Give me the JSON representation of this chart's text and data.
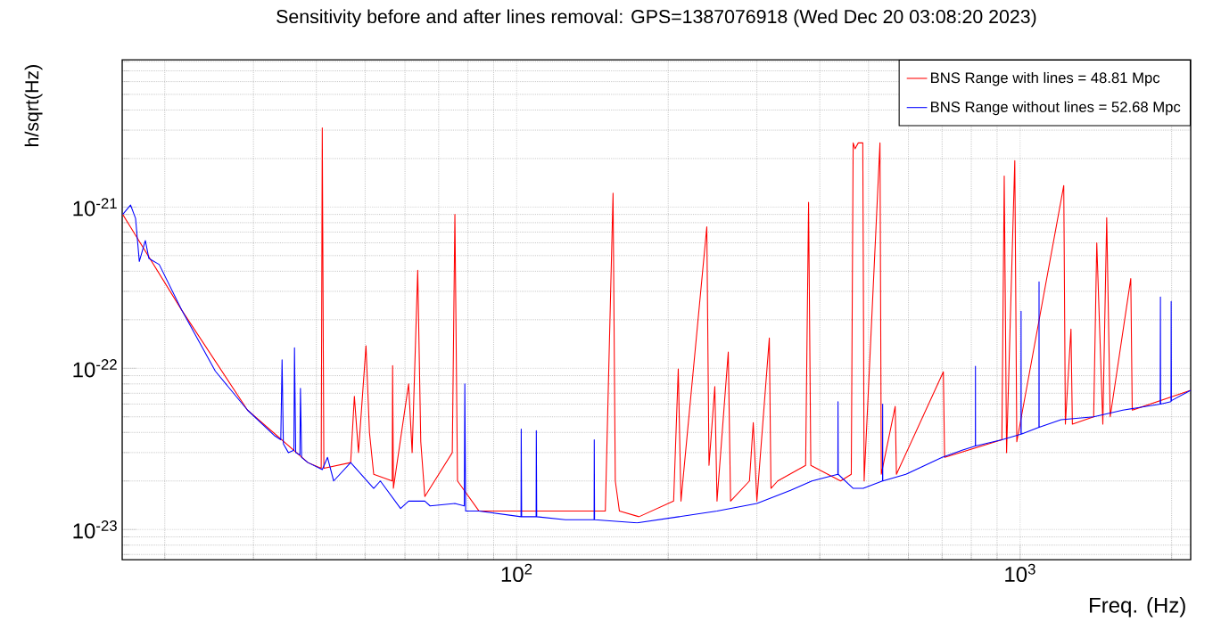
{
  "chart_data": {
    "type": "line",
    "title": "Sensitivity before and after lines removal: GPS=1387076918 (Wed Dec 20 03:08:20 2023)",
    "xlabel": "Freq. (Hz)",
    "ylabel": "h/sqrt(Hz)",
    "log": "xy",
    "grid": true,
    "legend": "top right",
    "xlim": [
      16.46,
      2182
    ],
    "ylim": [
      6.5e-24,
      8.2e-21
    ],
    "xticks": [
      {
        "value": 100,
        "label": "10$^{2}$"
      },
      {
        "value": 1000,
        "label": "10$^{3}$"
      }
    ],
    "yticks": [
      {
        "value": 1e-23,
        "label": "10$^{-23}$"
      },
      {
        "value": 1e-22,
        "label": "10$^{-22}$"
      },
      {
        "value": 1e-21,
        "label": "10$^{-21}$"
      }
    ],
    "series": [
      {
        "name": "BNS Range with lines = 48.81 Mpc",
        "color": "#ff0000",
        "x": [
          16.5,
          21.6,
          29.2,
          38.5,
          40.9,
          41.1,
          41.4,
          46.8,
          47.6,
          48.5,
          50.2,
          51.0,
          52.0,
          56.6,
          56.7,
          56.9,
          61.0,
          62.0,
          63.6,
          64.5,
          65.7,
          74.5,
          75.4,
          76.3,
          84.2,
          150,
          155.4,
          157,
          160,
          175,
          205,
          209.4,
          212,
          238.6,
          241,
          247.5,
          250,
          263.2,
          266,
          290,
          295.1,
          300,
          317.6,
          320,
          330,
          375,
          380.1,
          384,
          440,
          462,
          466,
          470,
          477,
          487,
          490,
          526.8,
          530,
          564.8,
          568,
          704,
          708,
          920,
          930,
          940,
          976,
          985,
          1221,
          1230,
          1262,
          1270,
          1400,
          1420,
          1460,
          1486,
          1510,
          1659,
          1670,
          2182
        ],
        "values": [
          9e-22,
          2.3e-22,
          5.5e-23,
          2.6e-23,
          2.4e-23,
          3.1e-21,
          2.4e-23,
          2.6e-23,
          6.7e-23,
          3e-23,
          1.38e-22,
          4e-23,
          2.2e-23,
          2e-23,
          1.04e-22,
          1.8e-23,
          8e-23,
          3e-23,
          4.06e-22,
          3.5e-23,
          1.6e-23,
          3e-23,
          9e-22,
          2e-23,
          1.3e-23,
          1.3e-23,
          1.22e-21,
          2e-23,
          1.3e-23,
          1.2e-23,
          1.5e-23,
          9.9e-23,
          1.5e-23,
          7.55e-22,
          2.5e-23,
          7.7e-23,
          1.5e-23,
          1.26e-22,
          1.5e-23,
          2e-23,
          4.6e-23,
          1.5e-23,
          1.54e-22,
          1.8e-23,
          2e-23,
          2.5e-23,
          1.07e-21,
          2.5e-23,
          2e-23,
          2.2e-23,
          2.5e-21,
          2.3e-21,
          2.5e-21,
          2.5e-21,
          2e-23,
          2.5e-21,
          2.2e-23,
          5.8e-23,
          2.2e-23,
          9.5e-23,
          2.8e-23,
          3.6e-23,
          1.56e-21,
          3e-23,
          1.94e-21,
          3.5e-23,
          1.36e-21,
          4.5e-23,
          1.75e-22,
          4.5e-23,
          5e-23,
          6e-22,
          4.5e-23,
          8.6e-22,
          5e-23,
          3.6e-22,
          5.5e-23,
          7.3e-23
        ]
      },
      {
        "name": "BNS Range without lines = 52.68 Mpc",
        "color": "#0000ff",
        "x": [
          16.5,
          17.1,
          17.5,
          17.8,
          18.3,
          18.6,
          19.5,
          21.6,
          25.2,
          29.2,
          33.1,
          34.0,
          34.2,
          34.4,
          35.2,
          36.1,
          36.2,
          36.4,
          37.1,
          37.2,
          37.4,
          38.5,
          41.1,
          42.1,
          43.3,
          46.8,
          52.0,
          53.6,
          58.8,
          61.0,
          65.7,
          67.3,
          75.4,
          78.7,
          78.9,
          79.2,
          84.2,
          102.0,
          102.1,
          102.3,
          109.3,
          109.4,
          109.6,
          125,
          142.5,
          142.6,
          142.8,
          173.5,
          210,
          250,
          300,
          350,
          386,
          434.5,
          434.8,
          435.2,
          466,
          488,
          533.0,
          533.3,
          533.6,
          593,
          700,
          767,
          815,
          815.3,
          815.6,
          920,
          1004,
          1004.5,
          1005,
          1090,
          1090.5,
          1091,
          1206,
          1400,
          1600,
          1898,
          1900,
          1902,
          1994,
          1996,
          1998,
          2182
        ],
        "values": [
          9e-22,
          1.03e-21,
          8.5e-22,
          4.6e-22,
          6.2e-22,
          4.8e-22,
          4.4e-22,
          2.3e-22,
          9.6e-23,
          5.5e-23,
          3.8e-23,
          3.6e-23,
          1.13e-22,
          3.4e-23,
          3e-23,
          3.1e-23,
          1.34e-22,
          3e-23,
          2.9e-23,
          7.5e-23,
          2.8e-23,
          2.6e-23,
          2.35e-23,
          2.8e-23,
          2e-23,
          2.6e-23,
          1.8e-23,
          2e-23,
          1.35e-23,
          1.5e-23,
          1.5e-23,
          1.4e-23,
          1.45e-23,
          1.4e-23,
          8e-23,
          1.3e-23,
          1.3e-23,
          1.2e-23,
          4.2e-23,
          1.2e-23,
          1.2e-23,
          4.1e-23,
          1.2e-23,
          1.15e-23,
          1.15e-23,
          3.6e-23,
          1.15e-23,
          1.1e-23,
          1.2e-23,
          1.3e-23,
          1.45e-23,
          1.75e-23,
          2e-23,
          2.2e-23,
          6.2e-23,
          2.2e-23,
          1.8e-23,
          1.8e-23,
          2e-23,
          6e-23,
          2e-23,
          2.2e-23,
          2.8e-23,
          3.1e-23,
          3.3e-23,
          1.03e-22,
          3.3e-23,
          3.6e-23,
          3.9e-23,
          2.26e-22,
          3.9e-23,
          4.3e-23,
          3.44e-22,
          4.3e-23,
          4.8e-23,
          5e-23,
          5.5e-23,
          6e-23,
          2.77e-22,
          6e-23,
          6.2e-23,
          2.6e-22,
          6.3e-23,
          7.3e-23
        ]
      }
    ]
  }
}
